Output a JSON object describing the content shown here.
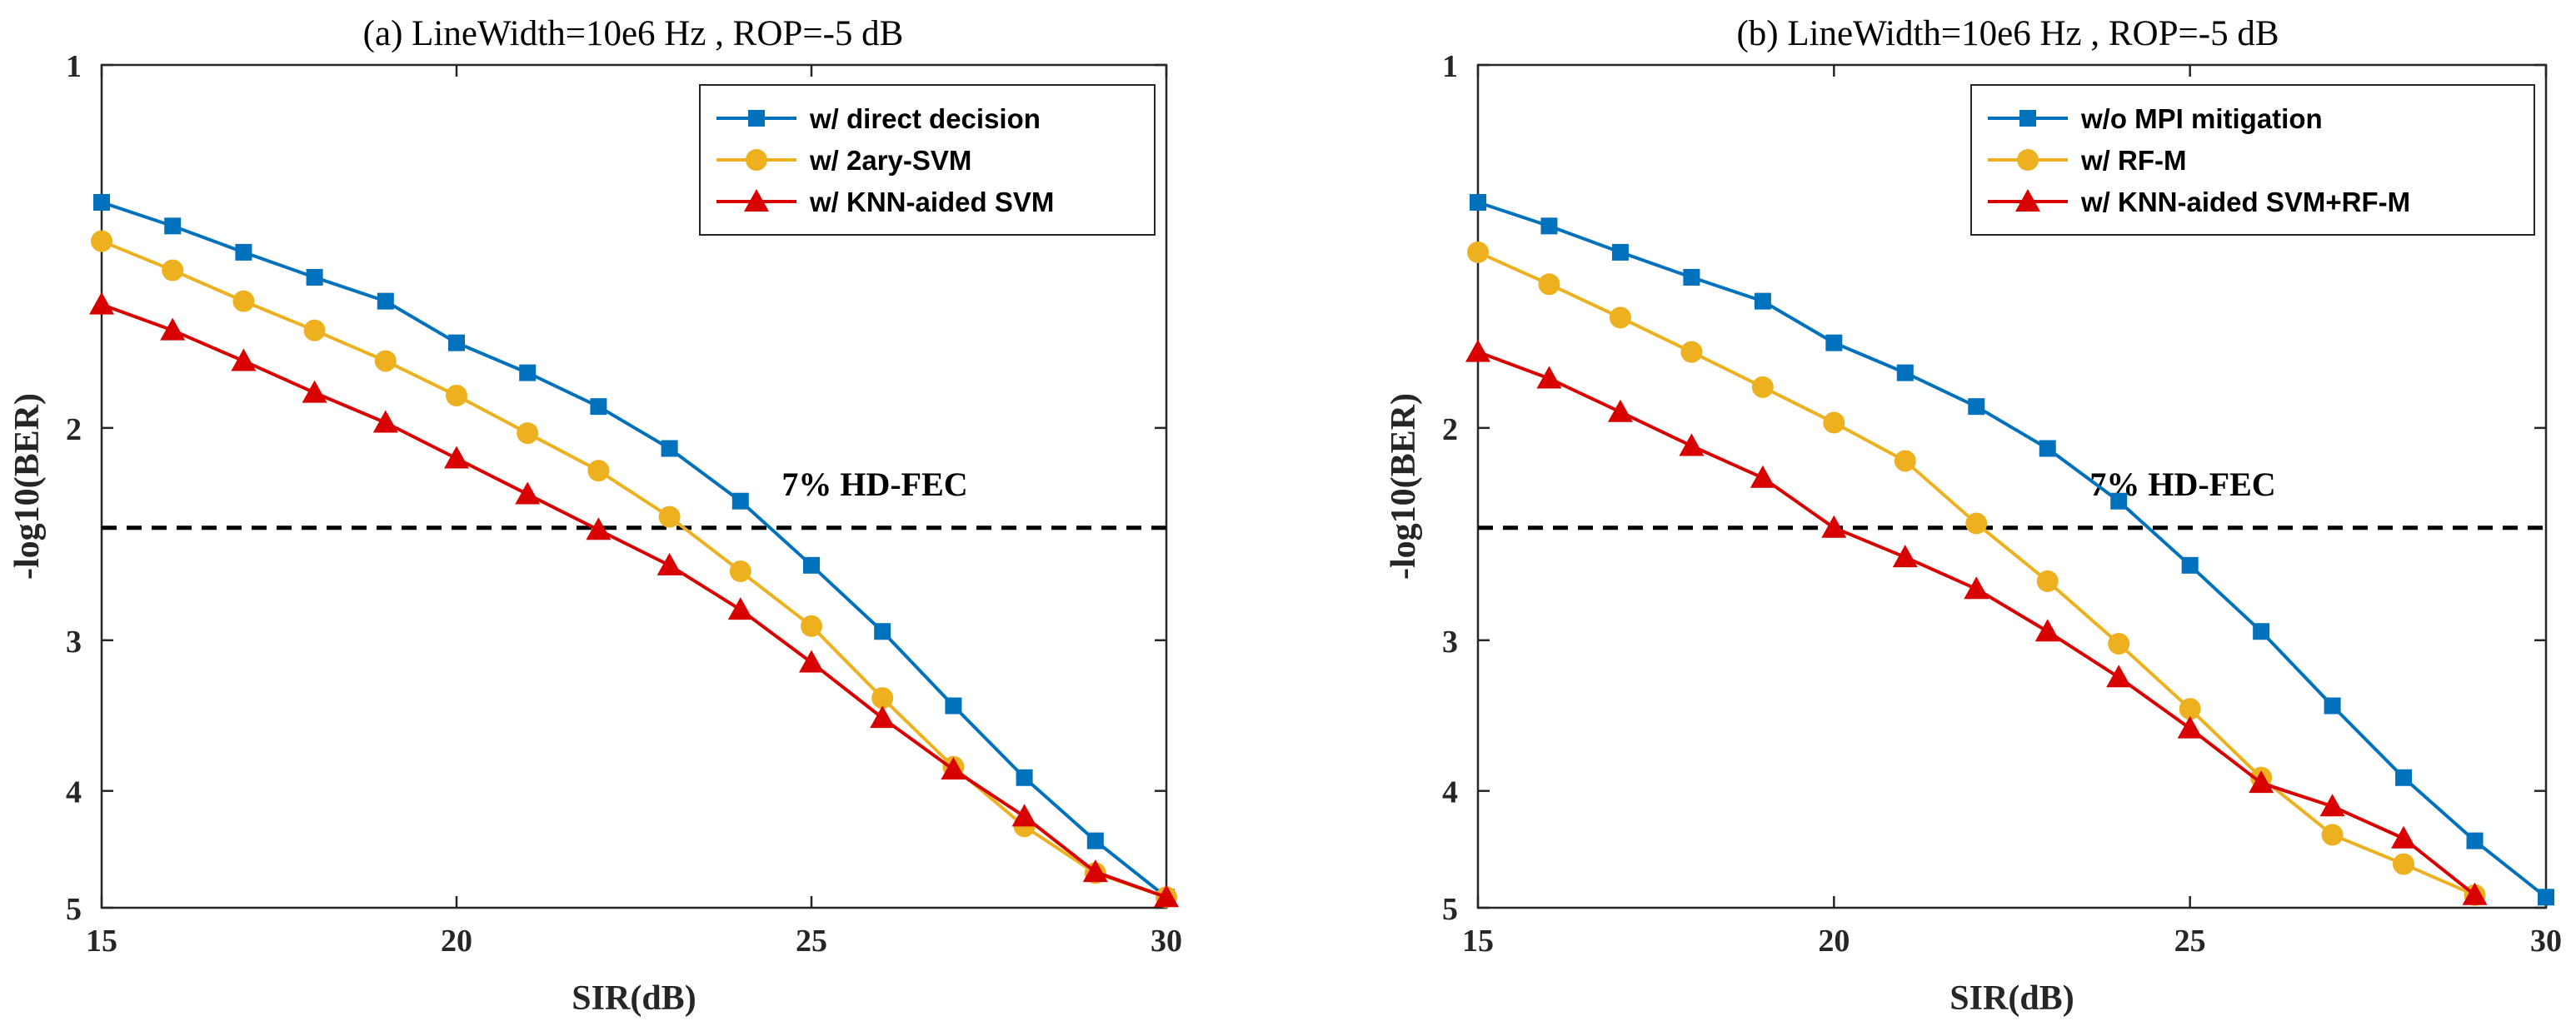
{
  "chart_data": [
    {
      "type": "line",
      "title": "(a) LineWidth=10e6 Hz , ROP=-5 dB",
      "xlabel": "SIR(dB)",
      "ylabel": "-log10(BER)",
      "xlim": [
        15,
        30
      ],
      "ylim": [
        1,
        5
      ],
      "y_scale": "log",
      "y_reversed": true,
      "xticks": [
        "15",
        "20",
        "25",
        "30"
      ],
      "yticks": [
        {
          "value": 1,
          "label": "1"
        },
        {
          "value": 2,
          "label": "2"
        },
        {
          "value": 3,
          "label": "3"
        },
        {
          "value": 4,
          "label": "4"
        },
        {
          "value": 5,
          "label": "5"
        }
      ],
      "legend_position": "top-right",
      "threshold": {
        "value": 2.42,
        "label": "7% HD-FEC",
        "style": "dashed"
      },
      "x": [
        15,
        16,
        17,
        18,
        19,
        20,
        21,
        22,
        23,
        24,
        25,
        26,
        27,
        28,
        29,
        30
      ],
      "series": [
        {
          "name": "w/ direct decision",
          "color": "#0072BD",
          "marker": "square",
          "values": [
            1.3,
            1.36,
            1.43,
            1.5,
            1.57,
            1.7,
            1.8,
            1.92,
            2.08,
            2.3,
            2.6,
            2.95,
            3.4,
            3.9,
            4.4,
            4.9
          ]
        },
        {
          "name": "w/ 2ary-SVM",
          "color": "#EDB120",
          "marker": "circle",
          "values": [
            1.4,
            1.48,
            1.57,
            1.66,
            1.76,
            1.88,
            2.02,
            2.17,
            2.37,
            2.63,
            2.92,
            3.35,
            3.82,
            4.28,
            4.68,
            4.9
          ]
        },
        {
          "name": "w/ KNN-aided SVM",
          "color": "#D90000",
          "marker": "triangle",
          "values": [
            1.58,
            1.66,
            1.76,
            1.87,
            1.98,
            2.12,
            2.27,
            2.43,
            2.6,
            2.83,
            3.13,
            3.48,
            3.84,
            4.2,
            4.67,
            4.9
          ]
        }
      ]
    },
    {
      "type": "line",
      "title": "(b) LineWidth=10e6 Hz , ROP=-5 dB",
      "xlabel": "SIR(dB)",
      "ylabel": "-log10(BER)",
      "xlim": [
        15,
        30
      ],
      "ylim": [
        1,
        5
      ],
      "y_scale": "log",
      "y_reversed": true,
      "xticks": [
        "15",
        "20",
        "25",
        "30"
      ],
      "yticks": [
        {
          "value": 1,
          "label": "1"
        },
        {
          "value": 2,
          "label": "2"
        },
        {
          "value": 3,
          "label": "3"
        },
        {
          "value": 4,
          "label": "4"
        },
        {
          "value": 5,
          "label": "5"
        }
      ],
      "legend_position": "top-right",
      "threshold": {
        "value": 2.42,
        "label": "7% HD-FEC",
        "style": "dashed"
      },
      "x": [
        15,
        16,
        17,
        18,
        19,
        20,
        21,
        22,
        23,
        24,
        25,
        26,
        27,
        28,
        29,
        30
      ],
      "series": [
        {
          "name": "w/o MPI mitigation",
          "color": "#0072BD",
          "marker": "square",
          "values": [
            1.3,
            1.36,
            1.43,
            1.5,
            1.57,
            1.7,
            1.8,
            1.92,
            2.08,
            2.3,
            2.6,
            2.95,
            3.4,
            3.9,
            4.4,
            4.9
          ]
        },
        {
          "name": "w/ RF-M",
          "color": "#EDB120",
          "marker": "circle",
          "values": [
            1.43,
            1.52,
            1.62,
            1.73,
            1.85,
            1.98,
            2.13,
            2.4,
            2.68,
            3.02,
            3.42,
            3.9,
            4.35,
            4.6,
            4.88,
            null
          ]
        },
        {
          "name": "w/ KNN-aided SVM+RF-M",
          "color": "#D90000",
          "marker": "triangle",
          "values": [
            1.73,
            1.82,
            1.94,
            2.07,
            2.2,
            2.42,
            2.56,
            2.72,
            2.95,
            3.22,
            3.55,
            3.94,
            4.12,
            4.38,
            4.88,
            null
          ]
        }
      ]
    }
  ]
}
